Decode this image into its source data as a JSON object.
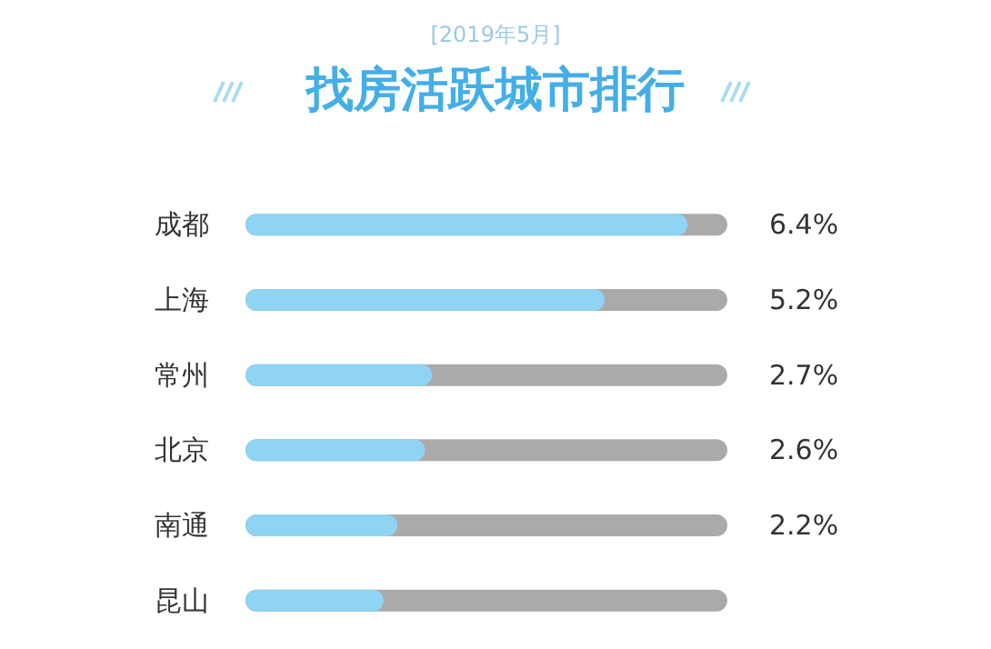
{
  "chart_data": {
    "type": "bar",
    "orientation": "horizontal",
    "title": "找房活跃城市排行",
    "subtitle": "[2019年5月]",
    "categories": [
      "成都",
      "上海",
      "常州",
      "北京",
      "南通",
      "昆山"
    ],
    "values": [
      6.4,
      5.2,
      2.7,
      2.6,
      2.2,
      2.0
    ],
    "value_labels": [
      "6.4%",
      "5.2%",
      "2.7%",
      "2.6%",
      "2.2%",
      null
    ],
    "color": "#8fd4f2"
  }
}
